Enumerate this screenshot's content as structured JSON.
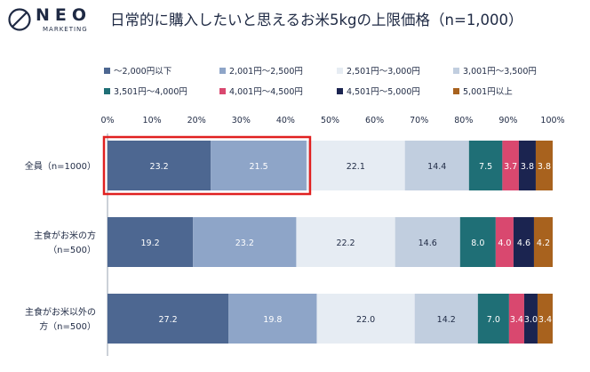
{
  "logo": {
    "name": "NEO",
    "sub": "MARKETING"
  },
  "title": "日常的に購入したいと思えるお米5kgの上限価格（n=1,000）",
  "chart_data": {
    "type": "bar",
    "orientation": "horizontal",
    "stacked": true,
    "percent": true,
    "title": "日常的に購入したいと思えるお米5kgの上限価格（n=1,000）",
    "xlim": [
      0,
      100
    ],
    "xticks": [
      "0%",
      "10%",
      "20%",
      "30%",
      "40%",
      "50%",
      "60%",
      "70%",
      "80%",
      "90%",
      "100%"
    ],
    "categories": [
      {
        "line1": "全員（n=1000）",
        "line2": ""
      },
      {
        "line1": "主食がお米の方",
        "line2": "（n=500）"
      },
      {
        "line1": "主食がお米以外の",
        "line2": "方（n=500）"
      }
    ],
    "legend_position": "top",
    "series": [
      {
        "name": "～2,000円以下",
        "color": "#4d6791",
        "label_color": "#ffffff",
        "values": [
          23.2,
          19.2,
          27.2
        ],
        "labels": [
          "23.2",
          "19.2",
          "27.2"
        ]
      },
      {
        "name": "2,001円～2,500円",
        "color": "#8ea5c8",
        "label_color": "#ffffff",
        "values": [
          21.5,
          23.2,
          19.8
        ],
        "labels": [
          "21.5",
          "23.2",
          "19.8"
        ]
      },
      {
        "name": "2,501円～3,000円",
        "color": "#e6ecf3",
        "label_color": "#1f2a44",
        "values": [
          22.1,
          22.2,
          22.0
        ],
        "labels": [
          "22.1",
          "22.2",
          "22.0"
        ]
      },
      {
        "name": "3,001円～3,500円",
        "color": "#c1cedf",
        "label_color": "#1f2a44",
        "values": [
          14.4,
          14.6,
          14.2
        ],
        "labels": [
          "14.4",
          "14.6",
          "14.2"
        ]
      },
      {
        "name": "3,501円～4,000円",
        "color": "#1f6f76",
        "label_color": "#ffffff",
        "values": [
          7.5,
          8.0,
          7.0
        ],
        "labels": [
          "7.5",
          "8.0",
          "7.0"
        ]
      },
      {
        "name": "4,001円～4,500円",
        "color": "#d9486f",
        "label_color": "#ffffff",
        "values": [
          3.7,
          4.0,
          3.4
        ],
        "labels": [
          "3.7",
          "4.0",
          "3.4"
        ]
      },
      {
        "name": "4,501円～5,000円",
        "color": "#1b2450",
        "label_color": "#ffffff",
        "values": [
          3.8,
          4.6,
          3.0
        ],
        "labels": [
          "3.8",
          "4.6",
          "3.0"
        ]
      },
      {
        "name": "5,001円以上",
        "color": "#a8621e",
        "label_color": "#ffffff",
        "values": [
          3.8,
          4.2,
          3.4
        ],
        "labels": [
          "3.8",
          "4.2",
          "3.4"
        ]
      }
    ],
    "highlight": {
      "category_index": 0,
      "series": [
        "～2,000円以下",
        "2,001円～2,500円"
      ],
      "color": "#e02020"
    }
  }
}
